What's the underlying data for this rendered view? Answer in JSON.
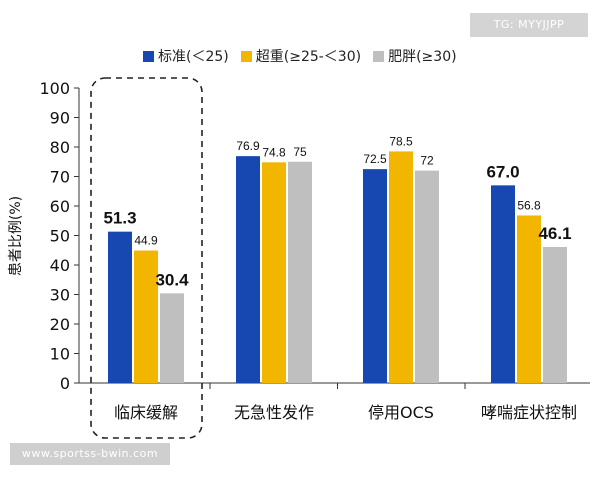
{
  "watermark_top": "TG: MYYJJPP",
  "watermark_bottom": "www.sportss-bwin.com",
  "colors": {
    "blue": "#1747B0",
    "yellow": "#F2B500",
    "gray": "#BFBFBF",
    "axis": "#333333",
    "dash": "#222222"
  },
  "chart_data": {
    "type": "bar",
    "ylabel": "患者比例(%)",
    "ylim": [
      0,
      100
    ],
    "yticks": [
      0,
      10,
      20,
      30,
      40,
      50,
      60,
      70,
      80,
      90,
      100
    ],
    "grid": false,
    "legend_position": "top",
    "categories": [
      "临床缓解",
      "无急性发作",
      "停用OCS",
      "哮喘症状控制"
    ],
    "series": [
      {
        "name": "标准(＜25)",
        "color": "#1747B0",
        "values": [
          51.3,
          76.9,
          72.5,
          67.0
        ],
        "labels": [
          "51.3",
          "76.9",
          "72.5",
          "67.0"
        ],
        "bold": [
          true,
          false,
          false,
          true
        ]
      },
      {
        "name": "超重(≥25-＜30)",
        "color": "#F2B500",
        "values": [
          44.9,
          74.8,
          78.5,
          56.8
        ],
        "labels": [
          "44.9",
          "74.8",
          "78.5",
          "56.8"
        ],
        "bold": [
          false,
          false,
          false,
          false
        ]
      },
      {
        "name": "肥胖(≥30)",
        "color": "#BFBFBF",
        "values": [
          30.4,
          75,
          72,
          46.1
        ],
        "labels": [
          "30.4",
          "75",
          "72",
          "46.1"
        ],
        "bold": [
          true,
          false,
          false,
          true
        ]
      }
    ],
    "highlight_category": "临床缓解"
  }
}
